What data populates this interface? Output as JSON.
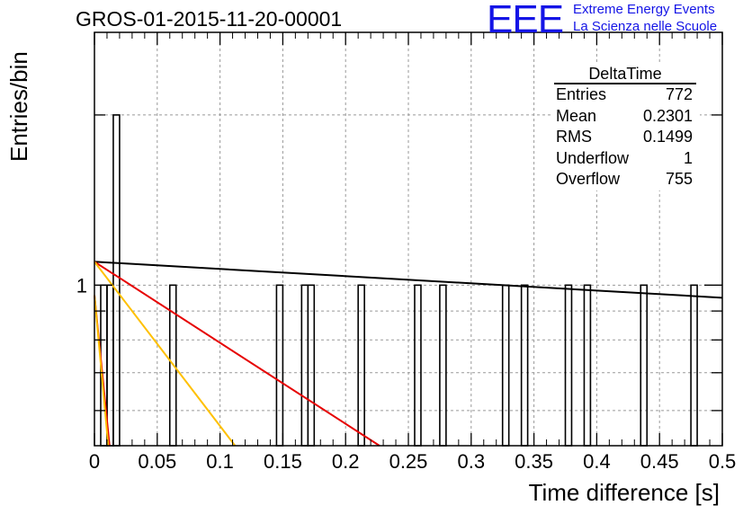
{
  "title": "GROS-01-2015-11-20-00001",
  "logo": {
    "mark": "EEE",
    "line1": "Extreme Energy Events",
    "line2": "La Scienza nelle Scuole"
  },
  "stats": {
    "title": "DeltaTime",
    "rows": [
      {
        "label": "Entries",
        "value": "772"
      },
      {
        "label": "Mean",
        "value": "0.2301"
      },
      {
        "label": "RMS",
        "value": "0.1499"
      },
      {
        "label": "Underflow",
        "value": "1"
      },
      {
        "label": "Overflow",
        "value": "755"
      }
    ]
  },
  "chart_data": {
    "type": "bar",
    "title": "GROS-01-2015-11-20-00001",
    "xlabel": "Time difference [s]",
    "ylabel": "Entries/bin",
    "xlim": [
      0,
      0.5
    ],
    "ylim": [
      0.52,
      2.8
    ],
    "yscale": "log",
    "grid": true,
    "legend": "top-right",
    "xticks": [
      "0",
      "0.05",
      "0.1",
      "0.15",
      "0.2",
      "0.25",
      "0.3",
      "0.35",
      "0.4",
      "0.45",
      "0.5"
    ],
    "yticks": [
      "1"
    ],
    "bin_width": 0.005,
    "bins": [
      {
        "x": 0.005,
        "value": 1
      },
      {
        "x": 0.01,
        "value": 1
      },
      {
        "x": 0.015,
        "value": 2
      },
      {
        "x": 0.06,
        "value": 1
      },
      {
        "x": 0.145,
        "value": 1
      },
      {
        "x": 0.165,
        "value": 1
      },
      {
        "x": 0.17,
        "value": 1
      },
      {
        "x": 0.21,
        "value": 1
      },
      {
        "x": 0.255,
        "value": 1
      },
      {
        "x": 0.275,
        "value": 1
      },
      {
        "x": 0.325,
        "value": 1
      },
      {
        "x": 0.34,
        "value": 1
      },
      {
        "x": 0.375,
        "value": 1
      },
      {
        "x": 0.39,
        "value": 1
      },
      {
        "x": 0.435,
        "value": 1
      },
      {
        "x": 0.475,
        "value": 1
      }
    ],
    "fit_lines": [
      {
        "color": "#000000",
        "points": [
          [
            0,
            1.1
          ],
          [
            0.5,
            0.95
          ]
        ]
      },
      {
        "color": "#e60000",
        "points": [
          [
            0,
            1.1
          ],
          [
            0.227,
            0.52
          ]
        ]
      },
      {
        "color": "#ffc000",
        "points": [
          [
            0,
            1.1
          ],
          [
            0.112,
            0.52
          ]
        ]
      },
      {
        "color": "#e60000",
        "points": [
          [
            0,
            0.96
          ],
          [
            0.012,
            0.52
          ]
        ]
      },
      {
        "color": "#ffc000",
        "points": [
          [
            0,
            0.96
          ],
          [
            0.011,
            0.52
          ]
        ]
      }
    ]
  }
}
